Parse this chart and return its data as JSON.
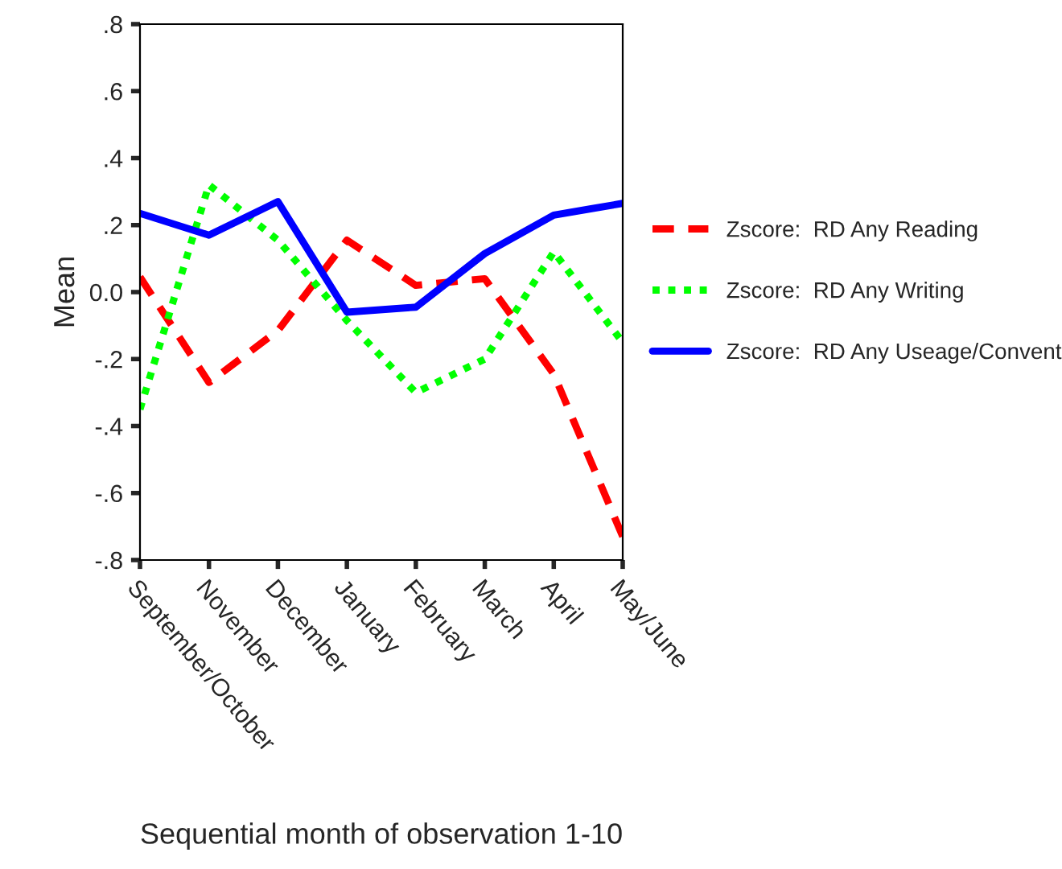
{
  "chart_data": {
    "type": "line",
    "xlabel": "Sequential month of observation 1-10",
    "ylabel": "Mean",
    "categories": [
      "September/October",
      "November",
      "December",
      "January",
      "February",
      "March",
      "April",
      "May/June"
    ],
    "series": [
      {
        "name": "Zscore:  RD Any Reading",
        "color": "#ff0000",
        "line_style": "dashed",
        "values": [
          0.045,
          -0.27,
          -0.115,
          0.155,
          0.02,
          0.04,
          -0.245,
          -0.73
        ]
      },
      {
        "name": "Zscore:  RD Any Writing",
        "color": "#00ff00",
        "line_style": "dotted",
        "values": [
          -0.35,
          0.32,
          0.155,
          -0.085,
          -0.3,
          -0.2,
          0.12,
          -0.15
        ]
      },
      {
        "name": "Zscore:  RD Any Useage/Convent",
        "color": "#0000ff",
        "line_style": "solid",
        "values": [
          0.235,
          0.17,
          0.27,
          -0.06,
          -0.045,
          0.115,
          0.23,
          0.265
        ]
      }
    ],
    "ylim": [
      -0.8,
      0.8
    ],
    "yticks": [
      {
        "value": -0.8,
        "label": "-.8"
      },
      {
        "value": -0.6,
        "label": "-.6"
      },
      {
        "value": -0.4,
        "label": "-.4"
      },
      {
        "value": -0.2,
        "label": "-.2"
      },
      {
        "value": 0,
        "label": "0.0"
      },
      {
        "value": 0.2,
        "label": ".2"
      },
      {
        "value": 0.4,
        "label": ".4"
      },
      {
        "value": 0.6,
        "label": ".6"
      },
      {
        "value": 0.8,
        "label": ".8"
      }
    ],
    "grid": false,
    "legend": "right",
    "marker": "none"
  }
}
